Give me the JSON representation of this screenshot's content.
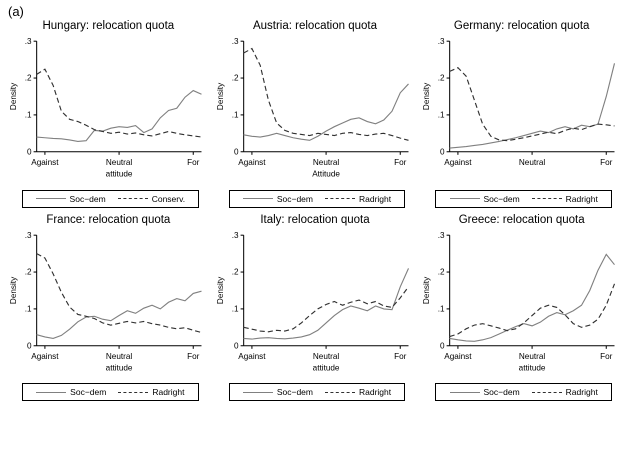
{
  "figure_label": "(a)",
  "colors": {
    "solid_line": "#808080",
    "dashed_line": "#303030",
    "axis": "#000000",
    "background": "#ffffff"
  },
  "chart_data": [
    {
      "type": "line",
      "title": "Hungary: relocation quota",
      "xlabel": "attitude",
      "ylabel": "Density",
      "ylim": [
        0,
        0.3
      ],
      "y_ticks": [
        0,
        0.1,
        0.2,
        0.3
      ],
      "y_tick_labels": [
        "0",
        ".1",
        ".2",
        ".3"
      ],
      "x_tick_labels": [
        "Against",
        "Neutral",
        "For"
      ],
      "legend_position": "bottom",
      "grid": false,
      "series": [
        {
          "name": "Soc−dem",
          "style": "solid",
          "values": [
            0.04,
            0.038,
            0.036,
            0.035,
            0.032,
            0.028,
            0.03,
            0.058,
            0.056,
            0.064,
            0.068,
            0.066,
            0.071,
            0.052,
            0.062,
            0.092,
            0.112,
            0.118,
            0.148,
            0.166,
            0.156
          ]
        },
        {
          "name": "Conserv.",
          "style": "dashed",
          "values": [
            0.21,
            0.224,
            0.18,
            0.11,
            0.088,
            0.082,
            0.072,
            0.06,
            0.055,
            0.05,
            0.053,
            0.048,
            0.051,
            0.046,
            0.043,
            0.049,
            0.055,
            0.05,
            0.046,
            0.043,
            0.04
          ]
        }
      ]
    },
    {
      "type": "line",
      "title": "Austria: relocation quota",
      "xlabel": "Attitude",
      "ylabel": "Density",
      "ylim": [
        0,
        0.3
      ],
      "y_ticks": [
        0,
        0.1,
        0.2,
        0.3
      ],
      "y_tick_labels": [
        "0",
        ".1",
        ".2",
        ".3"
      ],
      "x_tick_labels": [
        "Against",
        "Neutral",
        "For"
      ],
      "legend_position": "bottom",
      "grid": false,
      "series": [
        {
          "name": "Soc−dem",
          "style": "solid",
          "values": [
            0.046,
            0.042,
            0.04,
            0.044,
            0.05,
            0.044,
            0.038,
            0.034,
            0.031,
            0.042,
            0.056,
            0.068,
            0.078,
            0.088,
            0.092,
            0.082,
            0.076,
            0.086,
            0.11,
            0.16,
            0.184
          ]
        },
        {
          "name": "Radright",
          "style": "dashed",
          "values": [
            0.268,
            0.28,
            0.235,
            0.14,
            0.078,
            0.058,
            0.05,
            0.047,
            0.044,
            0.05,
            0.047,
            0.044,
            0.05,
            0.052,
            0.047,
            0.044,
            0.048,
            0.05,
            0.044,
            0.037,
            0.031
          ]
        }
      ]
    },
    {
      "type": "line",
      "title": "Germany: relocation quota",
      "xlabel": "",
      "ylabel": "Density",
      "ylim": [
        0,
        0.3
      ],
      "y_ticks": [
        0,
        0.1,
        0.2,
        0.3
      ],
      "y_tick_labels": [
        "0",
        ".1",
        ".2",
        ".3"
      ],
      "x_tick_labels": [
        "Against",
        "Neutral",
        "For"
      ],
      "legend_position": "bottom",
      "grid": false,
      "series": [
        {
          "name": "Soc−dem",
          "style": "solid",
          "values": [
            0.01,
            0.012,
            0.014,
            0.017,
            0.02,
            0.024,
            0.028,
            0.033,
            0.038,
            0.044,
            0.05,
            0.056,
            0.052,
            0.062,
            0.068,
            0.062,
            0.072,
            0.068,
            0.075,
            0.15,
            0.24
          ]
        },
        {
          "name": "Radright",
          "style": "dashed",
          "values": [
            0.218,
            0.228,
            0.205,
            0.14,
            0.075,
            0.042,
            0.032,
            0.03,
            0.034,
            0.038,
            0.043,
            0.048,
            0.053,
            0.049,
            0.058,
            0.064,
            0.06,
            0.068,
            0.075,
            0.073,
            0.07
          ]
        }
      ]
    },
    {
      "type": "line",
      "title": "France: relocation quota",
      "xlabel": "attitude",
      "ylabel": "Density",
      "ylim": [
        0,
        0.3
      ],
      "y_ticks": [
        0,
        0.1,
        0.2,
        0.3
      ],
      "y_tick_labels": [
        "0",
        ".1",
        ".2",
        ".3"
      ],
      "x_tick_labels": [
        "Against",
        "Neutral",
        "For"
      ],
      "legend_position": "bottom",
      "grid": false,
      "series": [
        {
          "name": "Soc−dem",
          "style": "solid",
          "values": [
            0.03,
            0.024,
            0.02,
            0.028,
            0.045,
            0.065,
            0.078,
            0.08,
            0.072,
            0.068,
            0.082,
            0.095,
            0.088,
            0.102,
            0.11,
            0.1,
            0.118,
            0.128,
            0.122,
            0.142,
            0.148
          ]
        },
        {
          "name": "Radright",
          "style": "dashed",
          "values": [
            0.25,
            0.238,
            0.195,
            0.145,
            0.105,
            0.085,
            0.08,
            0.074,
            0.062,
            0.056,
            0.061,
            0.066,
            0.062,
            0.066,
            0.06,
            0.056,
            0.05,
            0.046,
            0.049,
            0.042,
            0.036
          ]
        }
      ]
    },
    {
      "type": "line",
      "title": "Italy: relocation quota",
      "xlabel": "attitude",
      "ylabel": "Density",
      "ylim": [
        0,
        0.3
      ],
      "y_ticks": [
        0,
        0.1,
        0.2,
        0.3
      ],
      "y_tick_labels": [
        "0",
        ".1",
        ".2",
        ".3"
      ],
      "x_tick_labels": [
        "Against",
        "Neutral",
        "For"
      ],
      "legend_position": "bottom",
      "grid": false,
      "series": [
        {
          "name": "Soc−dem",
          "style": "solid",
          "values": [
            0.02,
            0.018,
            0.021,
            0.022,
            0.02,
            0.019,
            0.021,
            0.024,
            0.03,
            0.042,
            0.062,
            0.082,
            0.098,
            0.108,
            0.102,
            0.095,
            0.108,
            0.1,
            0.098,
            0.16,
            0.21
          ]
        },
        {
          "name": "Radright",
          "style": "dashed",
          "values": [
            0.05,
            0.045,
            0.04,
            0.038,
            0.042,
            0.04,
            0.046,
            0.062,
            0.082,
            0.1,
            0.112,
            0.12,
            0.11,
            0.118,
            0.124,
            0.114,
            0.12,
            0.108,
            0.104,
            0.13,
            0.16
          ]
        }
      ]
    },
    {
      "type": "line",
      "title": "Greece: relocation quota",
      "xlabel": "attitude",
      "ylabel": "Density",
      "ylim": [
        0,
        0.3
      ],
      "y_ticks": [
        0,
        0.1,
        0.2,
        0.3
      ],
      "y_tick_labels": [
        "0",
        ".1",
        ".2",
        ".3"
      ],
      "x_tick_labels": [
        "Against",
        "Neutral",
        "For"
      ],
      "legend_position": "bottom",
      "grid": false,
      "series": [
        {
          "name": "Soc−dem",
          "style": "solid",
          "values": [
            0.02,
            0.016,
            0.013,
            0.012,
            0.016,
            0.022,
            0.032,
            0.042,
            0.052,
            0.06,
            0.054,
            0.064,
            0.08,
            0.09,
            0.084,
            0.095,
            0.11,
            0.15,
            0.205,
            0.248,
            0.22
          ]
        },
        {
          "name": "Radright",
          "style": "dashed",
          "values": [
            0.025,
            0.032,
            0.046,
            0.056,
            0.06,
            0.054,
            0.048,
            0.041,
            0.046,
            0.062,
            0.082,
            0.102,
            0.11,
            0.104,
            0.084,
            0.06,
            0.05,
            0.056,
            0.072,
            0.11,
            0.168
          ]
        }
      ]
    }
  ]
}
